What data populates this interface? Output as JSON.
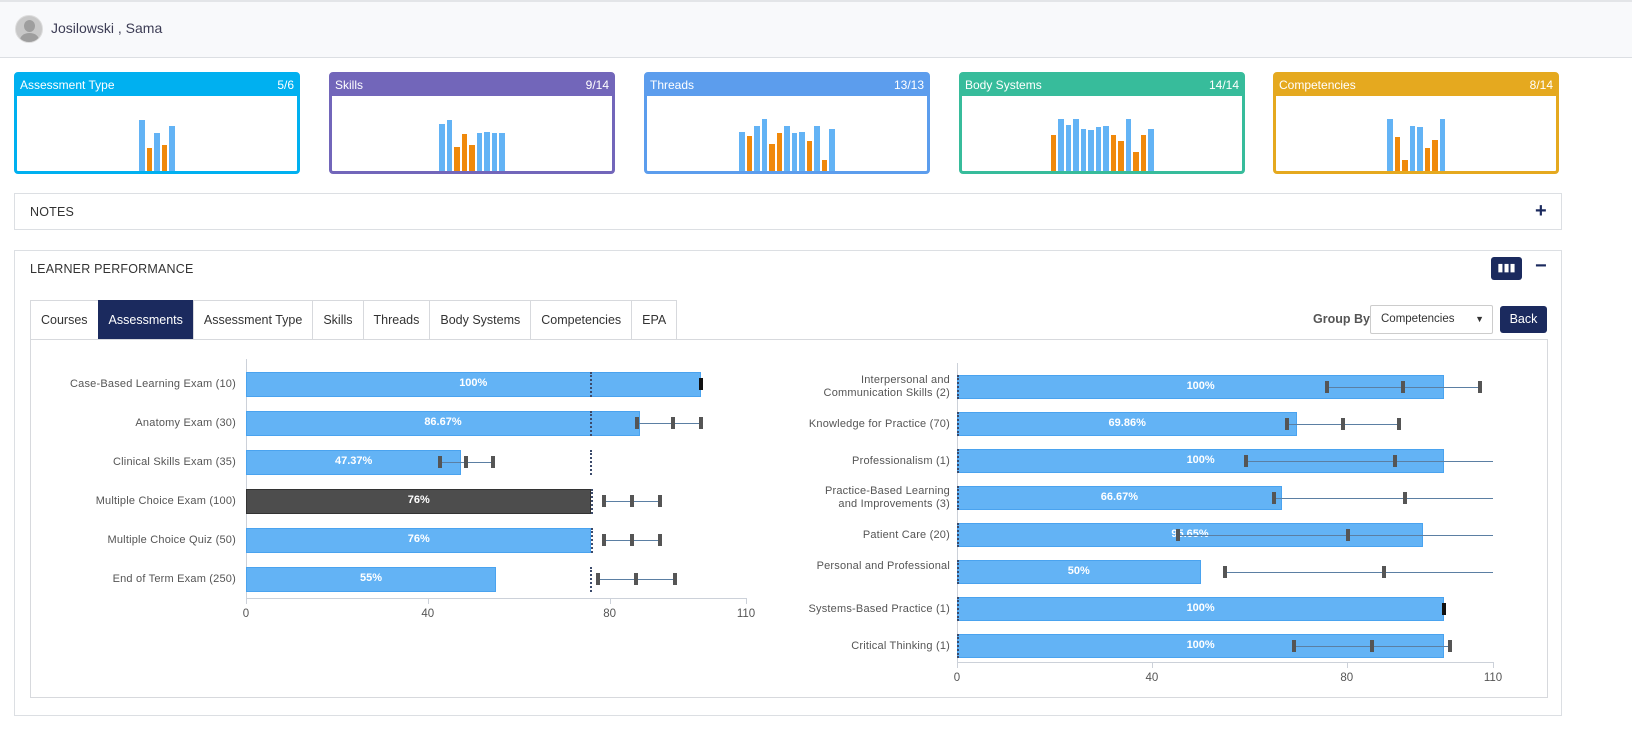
{
  "user": {
    "name": "Josilowski , Sama"
  },
  "cards": [
    {
      "title": "Assessment Type",
      "count": "5/6",
      "color": "#00b0f0",
      "bars": [
        [
          51,
          "b"
        ],
        [
          23,
          "o"
        ],
        [
          38,
          "b"
        ],
        [
          26,
          "o"
        ],
        [
          45,
          "b"
        ]
      ]
    },
    {
      "title": "Skills",
      "count": "9/14",
      "color": "#7266ba",
      "bars": [
        [
          47,
          "b"
        ],
        [
          51,
          "b"
        ],
        [
          24,
          "o"
        ],
        [
          37,
          "o"
        ],
        [
          26,
          "o"
        ],
        [
          38,
          "b"
        ],
        [
          39,
          "b"
        ],
        [
          38,
          "b"
        ],
        [
          38,
          "b"
        ]
      ]
    },
    {
      "title": "Threads",
      "count": "13/13",
      "color": "#5c9ded",
      "bars": [
        [
          39,
          "b"
        ],
        [
          35,
          "o"
        ],
        [
          45,
          "b"
        ],
        [
          52,
          "b"
        ],
        [
          27,
          "o"
        ],
        [
          38,
          "o"
        ],
        [
          45,
          "b"
        ],
        [
          38,
          "b"
        ],
        [
          39,
          "b"
        ],
        [
          30,
          "o"
        ],
        [
          45,
          "b"
        ],
        [
          11,
          "o"
        ],
        [
          42,
          "b"
        ]
      ]
    },
    {
      "title": "Body Systems",
      "count": "14/14",
      "color": "#37bc9b",
      "bars": [
        [
          36,
          "o"
        ],
        [
          52,
          "b"
        ],
        [
          46,
          "b"
        ],
        [
          52,
          "b"
        ],
        [
          42,
          "b"
        ],
        [
          41,
          "b"
        ],
        [
          44,
          "b"
        ],
        [
          45,
          "b"
        ],
        [
          36,
          "o"
        ],
        [
          30,
          "o"
        ],
        [
          52,
          "b"
        ],
        [
          19,
          "o"
        ],
        [
          36,
          "o"
        ],
        [
          42,
          "b"
        ]
      ]
    },
    {
      "title": "Competencies",
      "count": "8/14",
      "color": "#e5a91f",
      "bars": [
        [
          52,
          "b"
        ],
        [
          34,
          "o"
        ],
        [
          11,
          "o"
        ],
        [
          45,
          "b"
        ],
        [
          44,
          "b"
        ],
        [
          23,
          "o"
        ],
        [
          31,
          "o"
        ],
        [
          52,
          "b"
        ]
      ]
    }
  ],
  "colors": {
    "blue": "#63b3f5",
    "orange": "#f0890b",
    "navy": "#1b2a5e"
  },
  "notes": {
    "title": "NOTES",
    "toggle": "+"
  },
  "performance": {
    "title": "LEARNER PERFORMANCE",
    "toggle": "−",
    "chart_icon": "bar-chart-icon",
    "tabs": [
      "Courses",
      "Assessments",
      "Assessment Type",
      "Skills",
      "Threads",
      "Body Systems",
      "Competencies",
      "EPA"
    ],
    "active_tab": "Assessments",
    "group_by_label": "Group By",
    "group_by_value": "Competencies",
    "back_label": "Back"
  },
  "chart_data": [
    {
      "type": "bar",
      "orientation": "horizontal",
      "xlim": [
        0,
        110
      ],
      "xticks": [
        "0",
        "40",
        "80",
        "110"
      ],
      "class_average": [
        75.7,
        75.7,
        75.7,
        76,
        76,
        75.7
      ],
      "categories": [
        "Case-Based Learning Exam (10)",
        "Anatomy Exam (30)",
        "Clinical Skills Exam (35)",
        "Multiple Choice Exam (100)",
        "Multiple Choice Quiz (50)",
        "End of Term Exam (250)"
      ],
      "values": [
        100,
        86.67,
        47.37,
        76,
        76,
        55
      ],
      "labels": [
        "100%",
        "86.67%",
        "47.37%",
        "76%",
        "76%",
        "55%"
      ],
      "highlight": 3,
      "range": [
        [
          100,
          100,
          100
        ],
        [
          86,
          94,
          100
        ],
        [
          42.7,
          48.4,
          54.3
        ],
        [
          78.8,
          85,
          91
        ],
        [
          78.8,
          85,
          91
        ],
        [
          77.4,
          85.8,
          94.4
        ]
      ]
    },
    {
      "type": "bar",
      "orientation": "horizontal",
      "xlim": [
        0,
        110
      ],
      "xticks": [
        "0",
        "40",
        "80",
        "110"
      ],
      "categories": [
        [
          "Interpersonal and",
          "Communication Skills (2)"
        ],
        [
          "Knowledge for Practice (70)"
        ],
        [
          "Professionalism (1)"
        ],
        [
          "Practice-Based Learning",
          "and Improvements (3)"
        ],
        [
          "Patient Care (20)"
        ],
        [
          "Personal and Professional"
        ],
        [
          "Systems-Based Practice (1)"
        ],
        [
          "Critical Thinking (1)"
        ]
      ],
      "values": [
        100,
        69.86,
        100,
        66.67,
        95.65,
        50,
        100,
        100
      ],
      "labels": [
        "100%",
        "69.86%",
        "100%",
        "66.67%",
        "95.65%",
        "50%",
        "100%",
        "100%"
      ],
      "range": [
        [
          76,
          91.5,
          107.3
        ],
        [
          67.7,
          79.2,
          90.7
        ],
        [
          59.3,
          89.9,
          110
        ],
        [
          65,
          92,
          110
        ],
        [
          45.3,
          80.2,
          110
        ],
        [
          55,
          87.6,
          110
        ],
        [
          100,
          100,
          100
        ],
        [
          69.2,
          85.2,
          101.2
        ]
      ]
    }
  ]
}
